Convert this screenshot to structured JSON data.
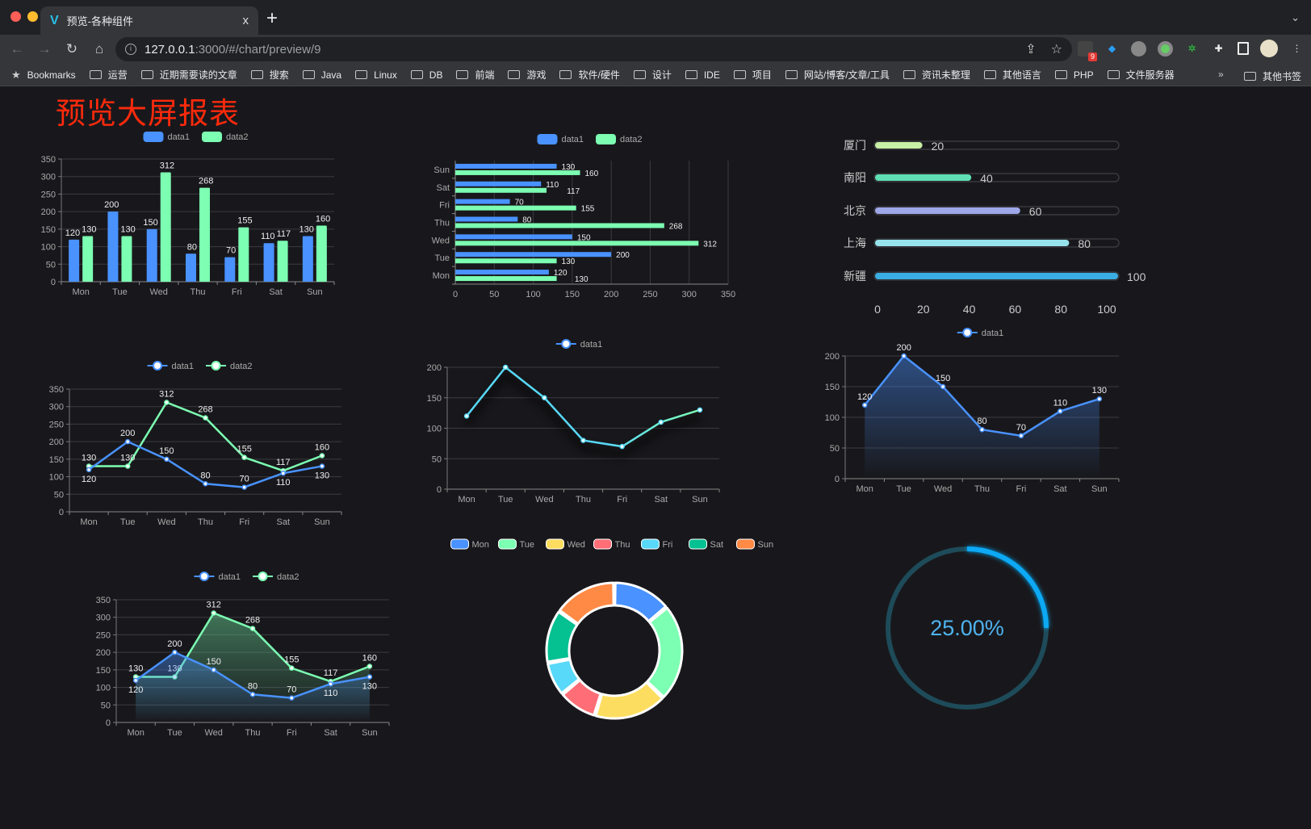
{
  "browser": {
    "tab_title": "预览-各种组件",
    "tab_close": "x",
    "new_tab": "+",
    "url_host": "127.0.0.1",
    "url_path": ":3000/#/chart/preview/9",
    "extension_badge": "9",
    "bookmarks": [
      "Bookmarks",
      "运营",
      "近期需要读的文章",
      "搜索",
      "Java",
      "Linux",
      "DB",
      "前端",
      "游戏",
      "软件/硬件",
      "设计",
      "IDE",
      "项目",
      "网站/博客/文章/工具",
      "资讯未整理",
      "其他语言",
      "PHP",
      "文件服务器"
    ],
    "bookmarks_overflow": "»",
    "other_bookmarks": "其他书签"
  },
  "page": {
    "title": "预览大屏报表",
    "title_color": "#ff2a0c"
  },
  "colors": {
    "data1": "#4992ff",
    "data2": "#7cffb2",
    "background": "#18181c"
  },
  "chart_data": [
    {
      "type": "bar",
      "categories": [
        "Mon",
        "Tue",
        "Wed",
        "Thu",
        "Fri",
        "Sat",
        "Sun"
      ],
      "series": [
        {
          "name": "data1",
          "values": [
            120,
            200,
            150,
            80,
            70,
            110,
            130
          ]
        },
        {
          "name": "data2",
          "values": [
            130,
            130,
            312,
            268,
            155,
            117,
            160
          ]
        }
      ],
      "ylim": [
        0,
        350
      ],
      "yticks": [
        0,
        50,
        100,
        150,
        200,
        250,
        300,
        350
      ],
      "grid": true,
      "legend": "top",
      "data_labels": true
    },
    {
      "type": "bar",
      "orientation": "horizontal",
      "categories": [
        "Mon",
        "Tue",
        "Wed",
        "Thu",
        "Fri",
        "Sat",
        "Sun"
      ],
      "series": [
        {
          "name": "data1",
          "values": [
            120,
            200,
            150,
            80,
            70,
            110,
            130
          ]
        },
        {
          "name": "data2",
          "values": [
            130,
            130,
            312,
            268,
            155,
            117,
            160
          ]
        }
      ],
      "xlim": [
        0,
        350
      ],
      "xticks": [
        0,
        50,
        100,
        150,
        200,
        250,
        300,
        350
      ],
      "grid": true,
      "legend": "top",
      "data_labels": true
    },
    {
      "type": "line",
      "categories": [
        "Mon",
        "Tue",
        "Wed",
        "Thu",
        "Fri",
        "Sat",
        "Sun"
      ],
      "series": [
        {
          "name": "data1",
          "values": [
            120,
            200,
            150,
            80,
            70,
            110,
            130
          ]
        },
        {
          "name": "data2",
          "values": [
            130,
            130,
            312,
            268,
            155,
            117,
            160
          ]
        }
      ],
      "ylim": [
        0,
        350
      ],
      "yticks": [
        0,
        50,
        100,
        150,
        200,
        250,
        300,
        350
      ],
      "grid": true,
      "legend": "top",
      "data_labels": true
    },
    {
      "type": "line",
      "categories": [
        "Mon",
        "Tue",
        "Wed",
        "Thu",
        "Fri",
        "Sat",
        "Sun"
      ],
      "series": [
        {
          "name": "data1",
          "values": [
            120,
            200,
            150,
            80,
            70,
            110,
            130
          ]
        }
      ],
      "ylim": [
        0,
        200
      ],
      "yticks": [
        0,
        50,
        100,
        150,
        200
      ],
      "grid": true,
      "legend": "top",
      "data_labels": false,
      "line_gradient": [
        "#58d9f9",
        "#7cffb2"
      ]
    },
    {
      "type": "area",
      "categories": [
        "Mon",
        "Tue",
        "Wed",
        "Thu",
        "Fri",
        "Sat",
        "Sun"
      ],
      "series": [
        {
          "name": "data1",
          "values": [
            120,
            200,
            150,
            80,
            70,
            110,
            130
          ]
        }
      ],
      "ylim": [
        0,
        200
      ],
      "yticks": [
        0,
        50,
        100,
        150,
        200
      ],
      "grid": true,
      "legend": "top",
      "data_labels": true
    },
    {
      "type": "area",
      "categories": [
        "Mon",
        "Tue",
        "Wed",
        "Thu",
        "Fri",
        "Sat",
        "Sun"
      ],
      "series": [
        {
          "name": "data1",
          "values": [
            120,
            200,
            150,
            80,
            70,
            110,
            130
          ]
        },
        {
          "name": "data2",
          "values": [
            130,
            130,
            312,
            268,
            155,
            117,
            160
          ]
        }
      ],
      "ylim": [
        0,
        350
      ],
      "yticks": [
        0,
        50,
        100,
        150,
        200,
        250,
        300,
        350
      ],
      "grid": true,
      "legend": "top",
      "data_labels": true
    },
    {
      "type": "pie",
      "donut": true,
      "categories": [
        "Mon",
        "Tue",
        "Wed",
        "Thu",
        "Fri",
        "Sat",
        "Sun"
      ],
      "values": [
        120,
        200,
        150,
        80,
        70,
        110,
        130
      ],
      "colors": [
        "#4992ff",
        "#7cffb2",
        "#fddd60",
        "#ff6e76",
        "#58d9f9",
        "#05c091",
        "#ff8a45"
      ],
      "legend": "top"
    },
    {
      "type": "bar",
      "orientation": "horizontal",
      "categories": [
        "厦门",
        "南阳",
        "北京",
        "上海",
        "新疆"
      ],
      "values": [
        20,
        40,
        60,
        80,
        100
      ],
      "xlim": [
        0,
        100
      ],
      "xticks": [
        0,
        20,
        40,
        60,
        80,
        100
      ],
      "colors": [
        "#c8efa5",
        "#5fe0b4",
        "#9ea8e8",
        "#97e3ec",
        "#3aaee3"
      ],
      "data_labels": true
    },
    {
      "type": "gauge",
      "value": 25,
      "label": "25.00%",
      "max": 100,
      "color": "#09a9f5",
      "track_color": "#1e4b59"
    }
  ]
}
